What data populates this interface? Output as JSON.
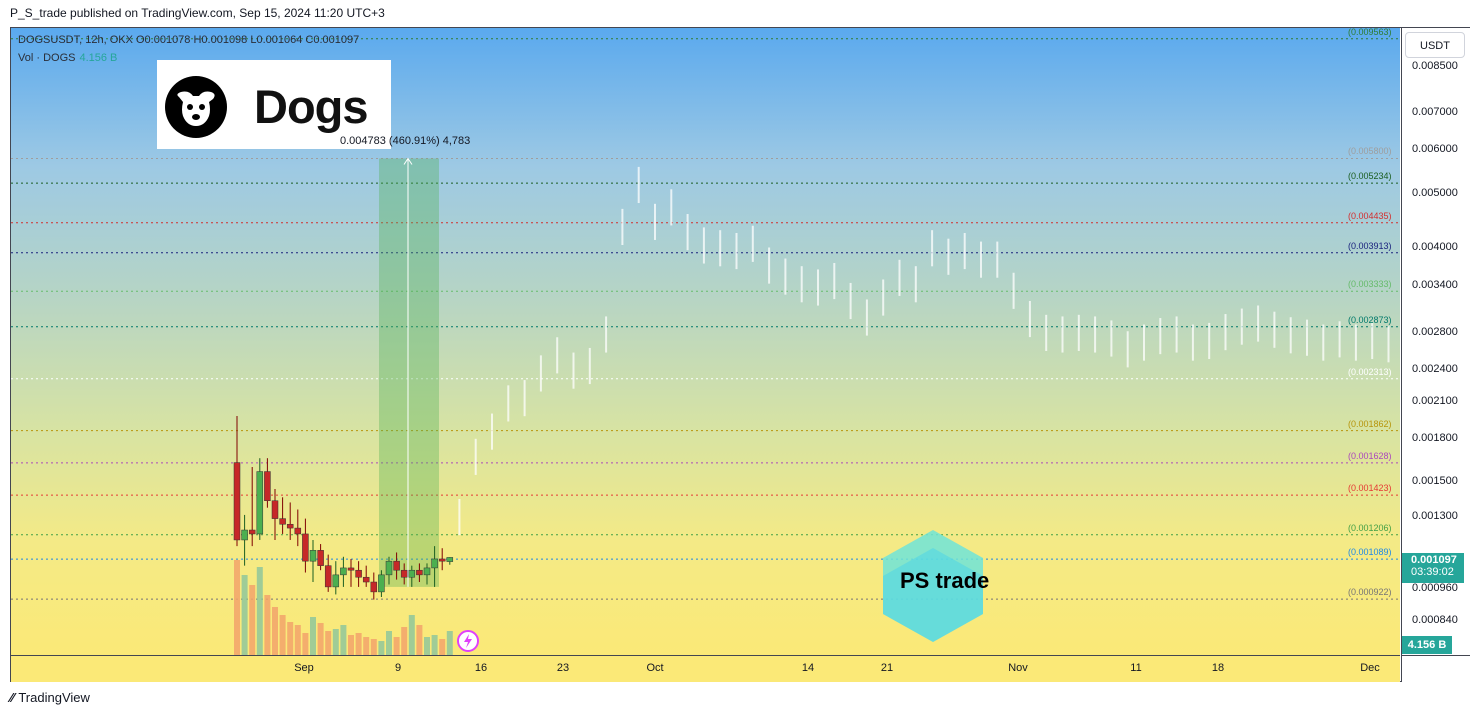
{
  "header": "P_S_trade published on TradingView.com, Sep 15, 2024 11:20 UTC+3",
  "legend": {
    "symbol_line": "DOGSUSDT, 12h, OKX  O0.001078  H0.001098  L0.001064  C0.001097",
    "vol_label": "Vol · DOGS",
    "vol_value": "4.156 B"
  },
  "logo_text": "Dogs",
  "watermark_text": "PS trade",
  "measure_label": "0.004783 (460.91%) 4,783",
  "currency_button": "USDT",
  "last_price": "0.001097",
  "countdown": "03:39:02",
  "volume_badge": "4.156 B",
  "footer": "TradingView",
  "colors": {
    "up": "#26a69a",
    "down": "#ef5350",
    "bg_top": "#5aa9ee",
    "bg_bottom": "#fbe977",
    "label_bg": "#26a69a"
  },
  "chart_data": {
    "type": "candlestick",
    "symbol": "DOGSUSDT",
    "interval": "12h",
    "exchange": "OKX",
    "ohlc_last": {
      "open": 0.001078,
      "high": 0.001098,
      "low": 0.001064,
      "close": 0.001097
    },
    "y_scale": "log",
    "ylim": [
      0.00073,
      0.01
    ],
    "price_ticks": [
      "0.008500",
      "0.007000",
      "0.006000",
      "0.005000",
      "0.004000",
      "0.003400",
      "0.002800",
      "0.002400",
      "0.002100",
      "0.001800",
      "0.001500",
      "0.001300",
      "0.000960",
      "0.000840"
    ],
    "time_ticks": [
      "Sep",
      "9",
      "16",
      "23",
      "Oct",
      "14",
      "21",
      "Nov",
      "11",
      "18",
      "Dec"
    ],
    "fib_levels": [
      {
        "label": "(0.009563)",
        "value": 0.009563,
        "color": "#2e7d32"
      },
      {
        "label": "(0.005800)",
        "value": 0.0058,
        "color": "#9e9e9e"
      },
      {
        "label": "(0.005234)",
        "value": 0.005234,
        "color": "#1b5e20"
      },
      {
        "label": "(0.004435)",
        "value": 0.004435,
        "color": "#d32f2f"
      },
      {
        "label": "(0.003913)",
        "value": 0.003913,
        "color": "#1a237e"
      },
      {
        "label": "(0.003333)",
        "value": 0.003333,
        "color": "#66bb6a"
      },
      {
        "label": "(0.002873)",
        "value": 0.002873,
        "color": "#00796b"
      },
      {
        "label": "(0.002313)",
        "value": 0.002313,
        "color": "#ffffff"
      },
      {
        "label": "(0.001862)",
        "value": 0.001862,
        "color": "#b7950b"
      },
      {
        "label": "(0.001628)",
        "value": 0.001628,
        "color": "#ab47bc"
      },
      {
        "label": "(0.001423)",
        "value": 0.001423,
        "color": "#e53935"
      },
      {
        "label": "(0.001206)",
        "value": 0.001206,
        "color": "#43a047"
      },
      {
        "label": "(0.001089)",
        "value": 0.001089,
        "color": "#1e88e5"
      },
      {
        "label": "(0.000922)",
        "value": 0.000922,
        "color": "#757575"
      }
    ],
    "candles": [
      {
        "o": 0.00163,
        "h": 0.00198,
        "l": 0.00115,
        "c": 0.00118
      },
      {
        "o": 0.00118,
        "h": 0.00131,
        "l": 0.00106,
        "c": 0.00123
      },
      {
        "o": 0.00123,
        "h": 0.0016,
        "l": 0.00115,
        "c": 0.00121
      },
      {
        "o": 0.00121,
        "h": 0.00166,
        "l": 0.00118,
        "c": 0.00157
      },
      {
        "o": 0.00157,
        "h": 0.00166,
        "l": 0.00135,
        "c": 0.00139
      },
      {
        "o": 0.00139,
        "h": 0.00146,
        "l": 0.00118,
        "c": 0.00129
      },
      {
        "o": 0.00129,
        "h": 0.00141,
        "l": 0.00121,
        "c": 0.00126
      },
      {
        "o": 0.00126,
        "h": 0.00138,
        "l": 0.00118,
        "c": 0.00124
      },
      {
        "o": 0.00124,
        "h": 0.00134,
        "l": 0.00115,
        "c": 0.00121
      },
      {
        "o": 0.00121,
        "h": 0.00129,
        "l": 0.00103,
        "c": 0.00108
      },
      {
        "o": 0.00108,
        "h": 0.00118,
        "l": 0.00099,
        "c": 0.00113
      },
      {
        "o": 0.00113,
        "h": 0.00116,
        "l": 0.00104,
        "c": 0.00106
      },
      {
        "o": 0.00106,
        "h": 0.00111,
        "l": 0.00095,
        "c": 0.00097
      },
      {
        "o": 0.00097,
        "h": 0.00108,
        "l": 0.00094,
        "c": 0.00102
      },
      {
        "o": 0.00102,
        "h": 0.0011,
        "l": 0.00097,
        "c": 0.00105
      },
      {
        "o": 0.00105,
        "h": 0.00109,
        "l": 0.00097,
        "c": 0.00104
      },
      {
        "o": 0.00104,
        "h": 0.00108,
        "l": 0.00097,
        "c": 0.00101
      },
      {
        "o": 0.00101,
        "h": 0.00106,
        "l": 0.00097,
        "c": 0.00099
      },
      {
        "o": 0.00099,
        "h": 0.00103,
        "l": 0.00092,
        "c": 0.00095
      },
      {
        "o": 0.00095,
        "h": 0.00104,
        "l": 0.00093,
        "c": 0.00102
      },
      {
        "o": 0.00102,
        "h": 0.0011,
        "l": 0.00098,
        "c": 0.00108
      },
      {
        "o": 0.00108,
        "h": 0.00112,
        "l": 0.001,
        "c": 0.00104
      },
      {
        "o": 0.00104,
        "h": 0.00107,
        "l": 0.00098,
        "c": 0.00101
      },
      {
        "o": 0.00101,
        "h": 0.00106,
        "l": 0.00097,
        "c": 0.00104
      },
      {
        "o": 0.00104,
        "h": 0.00107,
        "l": 0.00099,
        "c": 0.00102
      },
      {
        "o": 0.00102,
        "h": 0.00107,
        "l": 0.00098,
        "c": 0.00105
      },
      {
        "o": 0.00105,
        "h": 0.00115,
        "l": 0.00097,
        "c": 0.00109
      },
      {
        "o": 0.00109,
        "h": 0.00114,
        "l": 0.00104,
        "c": 0.00108
      },
      {
        "o": 0.001078,
        "h": 0.001098,
        "l": 0.001064,
        "c": 0.001097
      }
    ],
    "volume_last": "4.156 B",
    "projection_highs": [
      0.0014,
      0.0018,
      0.002,
      0.00225,
      0.0023,
      0.00255,
      0.00275,
      0.00258,
      0.00263,
      0.003,
      0.0047,
      0.0056,
      0.0048,
      0.0051,
      0.0046,
      0.00435,
      0.0043,
      0.00425,
      0.00438,
      0.004,
      0.00382,
      0.0037,
      0.00365,
      0.00375,
      0.00345,
      0.00322,
      0.0035,
      0.0038,
      0.0037,
      0.0043,
      0.00415,
      0.00425,
      0.0041,
      0.0041,
      0.0036,
      0.0032,
      0.00302,
      0.003,
      0.00302,
      0.003,
      0.00295,
      0.00282,
      0.0029,
      0.00298,
      0.003,
      0.0029,
      0.00292,
      0.00303,
      0.0031,
      0.00314,
      0.00306,
      0.00299,
      0.00296,
      0.0029,
      0.00294,
      0.0029,
      0.00292,
      0.00288,
      0.0028,
      0.00271,
      0.0026,
      0.0025,
      0.0023,
      0.00212,
      0.00209,
      0.0021,
      0.0026,
      0.0032,
      0.0032,
      0.0032,
      0.00328
    ]
  }
}
